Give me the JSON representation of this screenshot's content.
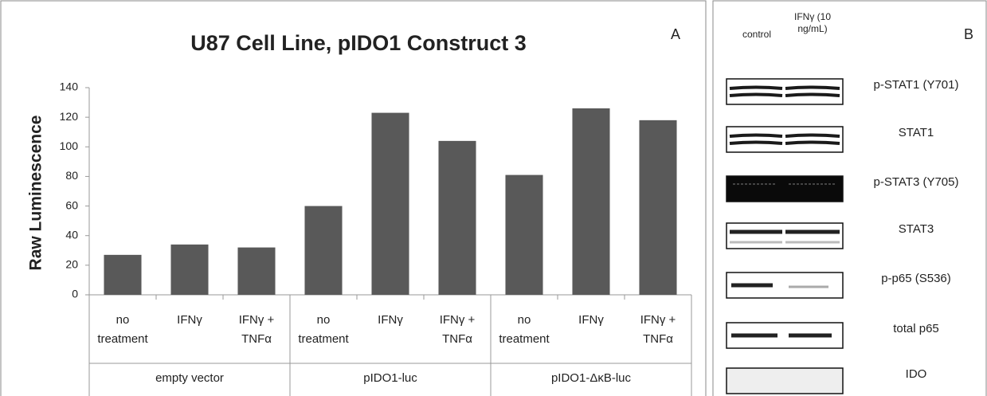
{
  "chart_data": {
    "type": "bar",
    "title": "U87 Cell Line, pIDO1 Construct 3",
    "panel_label": "A",
    "y_label": "Raw Luminescence",
    "categories": [
      "no treatment",
      "IFNγ",
      "IFNγ + TNFα",
      "no treatment",
      "IFNγ",
      "IFNγ + TNFα",
      "no treatment",
      "IFNγ",
      "IFNγ + TNFα"
    ],
    "category_groups": [
      "empty vector",
      "pIDO1-luc",
      "pIDO1-ΔκB-luc"
    ],
    "values": [
      27,
      34,
      32,
      60,
      123,
      104,
      81,
      126,
      118
    ],
    "color": "#595959",
    "ylim": [
      0,
      140
    ],
    "yticks": [
      0,
      20,
      40,
      60,
      80,
      100,
      120,
      140
    ],
    "grid": false
  },
  "blot": {
    "panel_label": "B",
    "columns": [
      "control",
      "IFNγ (10 ng/mL)"
    ],
    "rows": [
      "p-STAT1 (Y701)",
      "STAT1",
      "p-STAT3 (Y705)",
      "STAT3",
      "p-p65 (S536)",
      "total p65",
      "IDO"
    ]
  }
}
